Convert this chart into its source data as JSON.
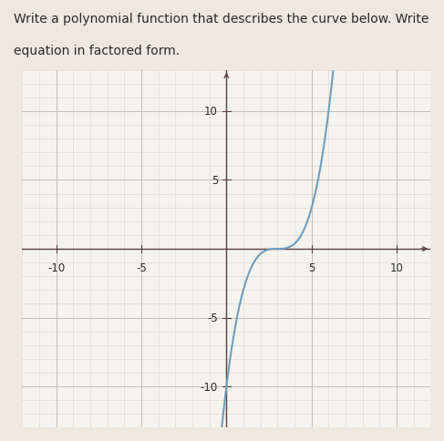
{
  "title_line1": "Write a polynomial function that describes the curve below. Write",
  "title_line2": "equation in factored form.",
  "xlim": [
    -12,
    12
  ],
  "ylim": [
    -13,
    13
  ],
  "xtick_labels": [
    "-10",
    "-5",
    "5",
    "10"
  ],
  "xtick_vals": [
    -10,
    -5,
    5,
    10
  ],
  "ytick_labels": [
    "10",
    "5",
    "-5",
    "-10"
  ],
  "ytick_vals": [
    10,
    5,
    -5,
    -10
  ],
  "curve_color": "#6e9ec0",
  "curve_linewidth": 1.5,
  "grid_minor_color": "#d8d5cd",
  "grid_major_color": "#c0bdb5",
  "bg_color": "#f5f3ee",
  "fig_color": "#ede9e0",
  "axis_color": "#5a4040",
  "text_color": "#2a2a2a",
  "title_fontsize": 10.0,
  "tick_fontsize": 8.5,
  "poly_root": 3,
  "scale_factor": 0.37
}
